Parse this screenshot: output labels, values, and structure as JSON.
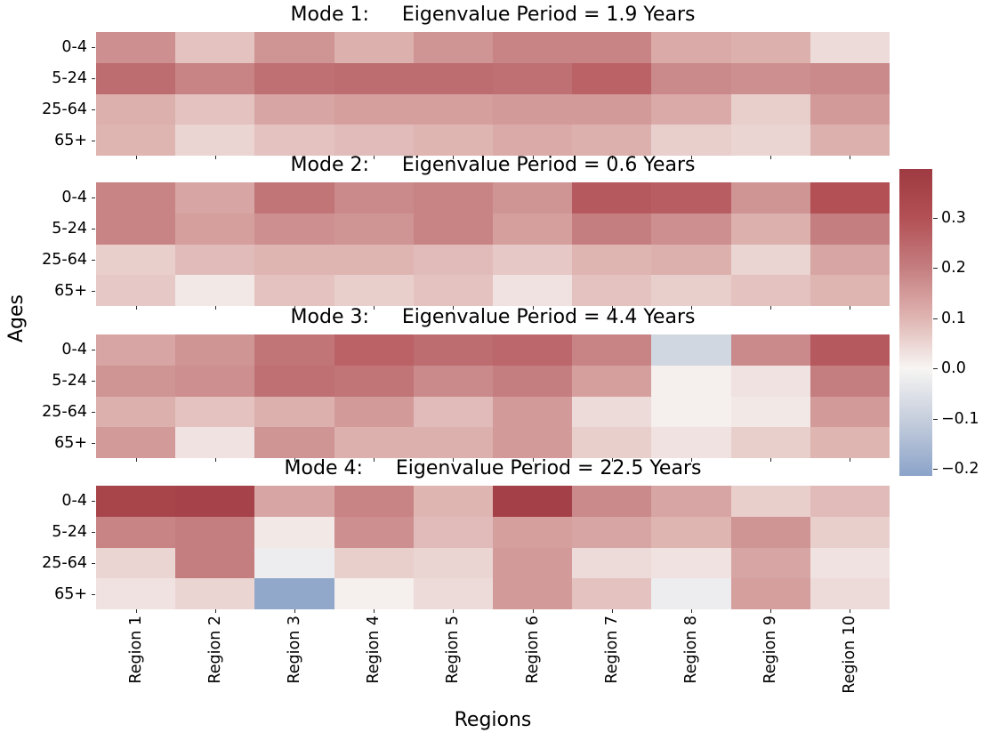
{
  "figure": {
    "xlabel": "Regions",
    "ylabel": "Ages",
    "background": "#ffffff",
    "text_color": "#000000"
  },
  "ages": [
    "0-4",
    "5-24",
    "25-64",
    "65+"
  ],
  "regions": [
    "Region 1",
    "Region 2",
    "Region 3",
    "Region 4",
    "Region 5",
    "Region 6",
    "Region 7",
    "Region 8",
    "Region 9",
    "Region 10"
  ],
  "colorbar": {
    "vmin": -0.214,
    "vmax": 0.397,
    "ticks": [
      {
        "value": 0.3,
        "label": "0.3"
      },
      {
        "value": 0.2,
        "label": "0.2"
      },
      {
        "value": 0.1,
        "label": "0.1"
      },
      {
        "value": 0.0,
        "label": "0.0"
      },
      {
        "value": -0.1,
        "label": "−0.1"
      },
      {
        "value": -0.2,
        "label": "−0.2"
      }
    ],
    "stops": [
      {
        "value": -0.214,
        "color": "#8ba3c9"
      },
      {
        "value": -0.1,
        "color": "#c7cfdd"
      },
      {
        "value": 0.0,
        "color": "#f7f5f3"
      },
      {
        "value": 0.1,
        "color": "#dfb5b2"
      },
      {
        "value": 0.2,
        "color": "#c57e80"
      },
      {
        "value": 0.3,
        "color": "#b25055"
      },
      {
        "value": 0.397,
        "color": "#9e3a41"
      }
    ]
  },
  "chart_data": [
    {
      "type": "heatmap",
      "title_prefix": "Mode 1:",
      "title_text": "Eigenvalue Period = 1.9 Years",
      "eigenvalue_period_years": 1.9,
      "rows": [
        "0-4",
        "5-24",
        "25-64",
        "65+"
      ],
      "columns": [
        "Region 1",
        "Region 2",
        "Region 3",
        "Region 4",
        "Region 5",
        "Region 6",
        "Region 7",
        "Region 8",
        "Region 9",
        "Region 10"
      ],
      "values": [
        [
          0.17,
          0.08,
          0.16,
          0.11,
          0.16,
          0.19,
          0.19,
          0.12,
          0.11,
          0.04
        ],
        [
          0.24,
          0.19,
          0.23,
          0.24,
          0.24,
          0.23,
          0.26,
          0.18,
          0.17,
          0.18
        ],
        [
          0.11,
          0.08,
          0.13,
          0.14,
          0.14,
          0.15,
          0.15,
          0.12,
          0.06,
          0.15
        ],
        [
          0.1,
          0.05,
          0.08,
          0.09,
          0.1,
          0.12,
          0.11,
          0.06,
          0.05,
          0.11
        ]
      ]
    },
    {
      "type": "heatmap",
      "title_prefix": "Mode 2:",
      "title_text": "Eigenvalue Period = 0.6 Years",
      "eigenvalue_period_years": 0.6,
      "rows": [
        "0-4",
        "5-24",
        "25-64",
        "65+"
      ],
      "columns": [
        "Region 1",
        "Region 2",
        "Region 3",
        "Region 4",
        "Region 5",
        "Region 6",
        "Region 7",
        "Region 8",
        "Region 9",
        "Region 10"
      ],
      "values": [
        [
          0.19,
          0.13,
          0.22,
          0.18,
          0.19,
          0.16,
          0.28,
          0.27,
          0.16,
          0.3
        ],
        [
          0.19,
          0.14,
          0.17,
          0.16,
          0.19,
          0.14,
          0.2,
          0.17,
          0.11,
          0.2
        ],
        [
          0.06,
          0.09,
          0.1,
          0.1,
          0.09,
          0.07,
          0.1,
          0.11,
          0.05,
          0.13
        ],
        [
          0.07,
          0.02,
          0.08,
          0.06,
          0.08,
          0.03,
          0.08,
          0.06,
          0.08,
          0.1
        ]
      ]
    },
    {
      "type": "heatmap",
      "title_prefix": "Mode 3:",
      "title_text": "Eigenvalue Period = 4.4 Years",
      "eigenvalue_period_years": 4.4,
      "rows": [
        "0-4",
        "5-24",
        "25-64",
        "65+"
      ],
      "columns": [
        "Region 1",
        "Region 2",
        "Region 3",
        "Region 4",
        "Region 5",
        "Region 6",
        "Region 7",
        "Region 8",
        "Region 9",
        "Region 10"
      ],
      "values": [
        [
          0.13,
          0.16,
          0.22,
          0.26,
          0.24,
          0.25,
          0.19,
          -0.08,
          0.18,
          0.28
        ],
        [
          0.16,
          0.17,
          0.23,
          0.22,
          0.18,
          0.2,
          0.14,
          0.01,
          0.03,
          0.2
        ],
        [
          0.11,
          0.08,
          0.11,
          0.15,
          0.09,
          0.15,
          0.04,
          0.01,
          0.02,
          0.15
        ],
        [
          0.15,
          0.03,
          0.16,
          0.11,
          0.11,
          0.15,
          0.06,
          0.03,
          0.06,
          0.1
        ]
      ]
    },
    {
      "type": "heatmap",
      "title_prefix": "Mode 4:",
      "title_text": "Eigenvalue Period = 22.5 Years",
      "eigenvalue_period_years": 22.5,
      "rows": [
        "0-4",
        "5-24",
        "25-64",
        "65+"
      ],
      "columns": [
        "Region 1",
        "Region 2",
        "Region 3",
        "Region 4",
        "Region 5",
        "Region 6",
        "Region 7",
        "Region 8",
        "Region 9",
        "Region 10"
      ],
      "values": [
        [
          0.35,
          0.36,
          0.13,
          0.19,
          0.1,
          0.37,
          0.18,
          0.13,
          0.06,
          0.09
        ],
        [
          0.19,
          0.2,
          0.02,
          0.17,
          0.09,
          0.14,
          0.13,
          0.1,
          0.16,
          0.06
        ],
        [
          0.05,
          0.2,
          -0.02,
          0.06,
          0.05,
          0.15,
          0.04,
          0.03,
          0.13,
          0.03
        ],
        [
          0.03,
          0.05,
          -0.2,
          0.01,
          0.04,
          0.15,
          0.08,
          -0.02,
          0.14,
          0.04
        ]
      ]
    }
  ]
}
